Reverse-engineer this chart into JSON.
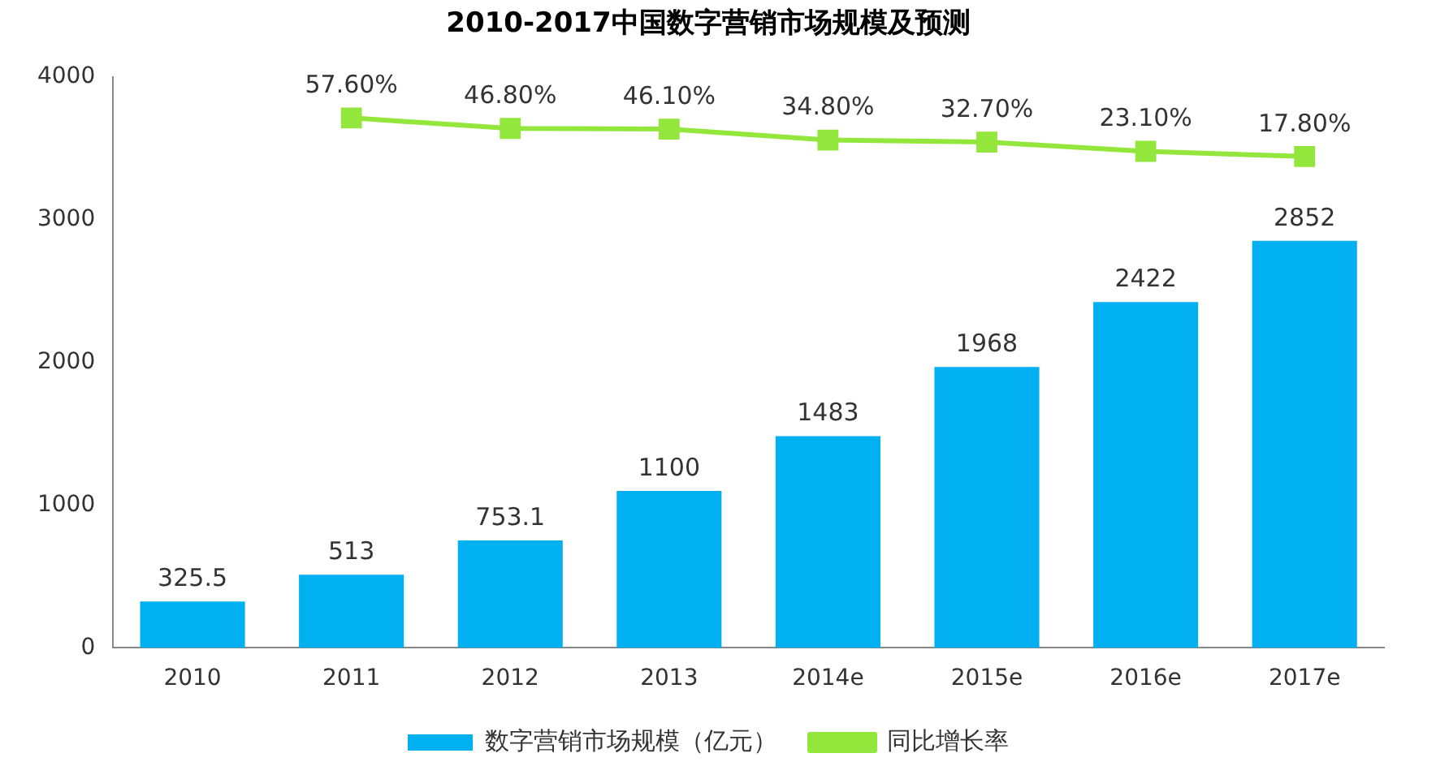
{
  "chart_data": {
    "type": "bar",
    "title": "2010-2017中国数字营销市场规模及预测",
    "categories": [
      "2010",
      "2011",
      "2012",
      "2013",
      "2014e",
      "2015e",
      "2016e",
      "2017e"
    ],
    "series": [
      {
        "name": "数字营销市场规模（亿元）",
        "color": "#00b0f0",
        "values": [
          325.5,
          513,
          753.1,
          1100,
          1483,
          1968,
          2422,
          2852
        ]
      },
      {
        "name": "同比增长率",
        "type": "line",
        "axis": "y2",
        "color": "#92e63c",
        "marker": "square",
        "values": [
          null,
          57.6,
          46.8,
          46.1,
          34.8,
          32.7,
          23.1,
          17.8
        ],
        "value_labels": [
          null,
          "57.60%",
          "46.80%",
          "46.10%",
          "34.80%",
          "32.70%",
          "23.10%",
          "17.80%"
        ]
      }
    ],
    "ylim": [
      0,
      4000
    ],
    "yticks": [
      0,
      1000,
      2000,
      3000,
      4000
    ],
    "y2lim": [
      -490,
      100
    ],
    "data_labels": true,
    "legend": "bottom",
    "grid": false
  }
}
